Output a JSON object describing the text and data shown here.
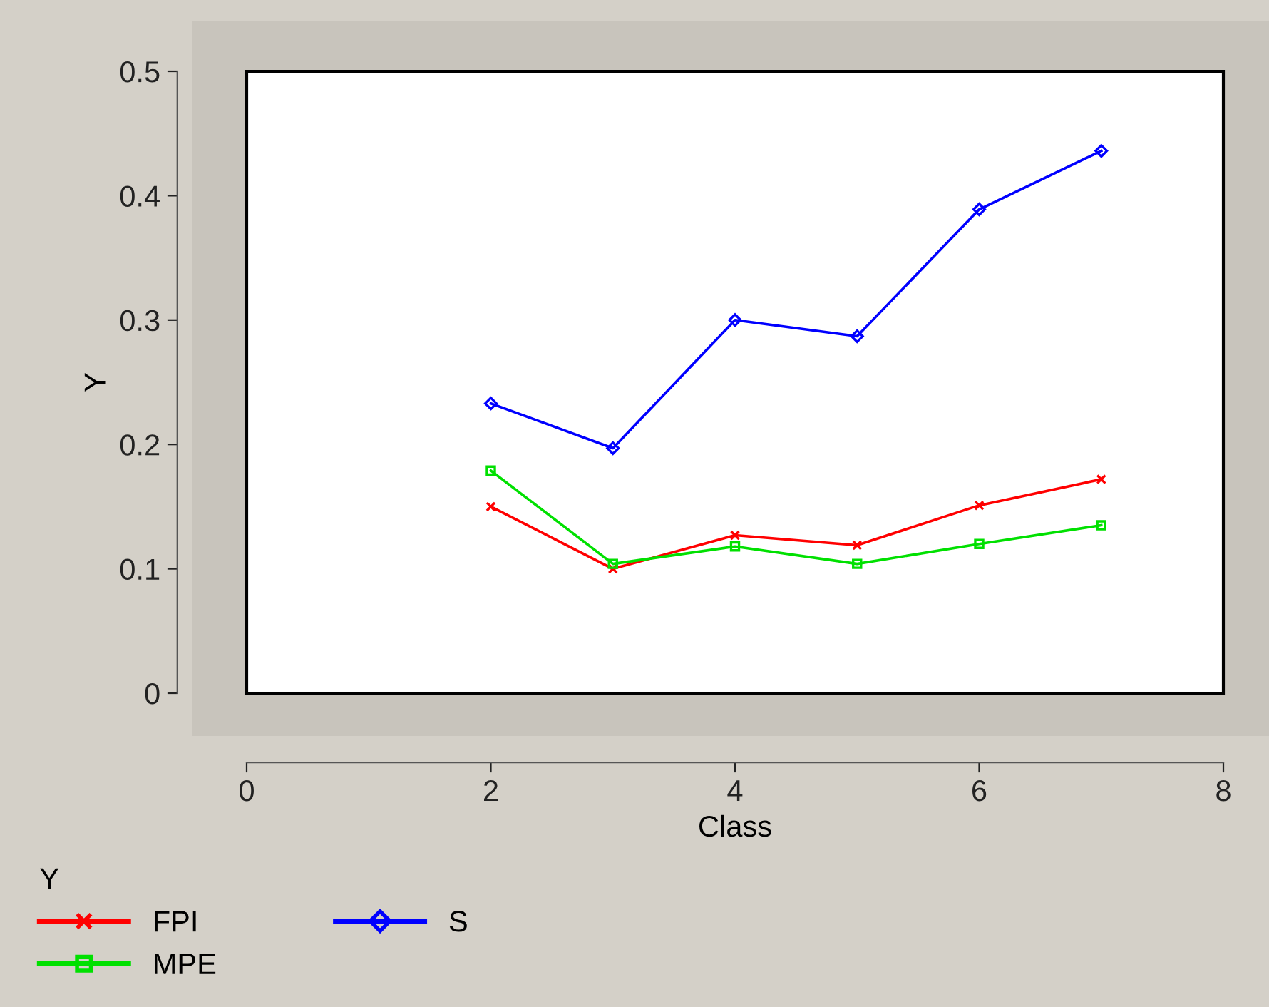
{
  "chart_data": {
    "type": "line",
    "xlabel": "Class",
    "ylabel": "Y",
    "legend_title": "Y",
    "x": [
      2,
      3,
      4,
      5,
      6,
      7
    ],
    "series": [
      {
        "name": "FPI",
        "color": "#ff0000",
        "marker": "cross",
        "values": [
          0.15,
          0.1,
          0.127,
          0.119,
          0.151,
          0.172
        ]
      },
      {
        "name": "MPE",
        "color": "#00e000",
        "marker": "square",
        "values": [
          0.179,
          0.104,
          0.118,
          0.104,
          0.12,
          0.135
        ]
      },
      {
        "name": "S",
        "color": "#0000ff",
        "marker": "diamond",
        "values": [
          0.233,
          0.197,
          0.3,
          0.287,
          0.389,
          0.436
        ]
      }
    ],
    "xlim": [
      0,
      8
    ],
    "xticks": [
      0,
      2,
      4,
      6,
      8
    ],
    "ylim": [
      0,
      0.5
    ],
    "yticks": [
      0,
      0.1,
      0.2,
      0.3,
      0.4,
      0.5
    ],
    "grid": false,
    "legend": "bottom",
    "line_style": "solid"
  }
}
